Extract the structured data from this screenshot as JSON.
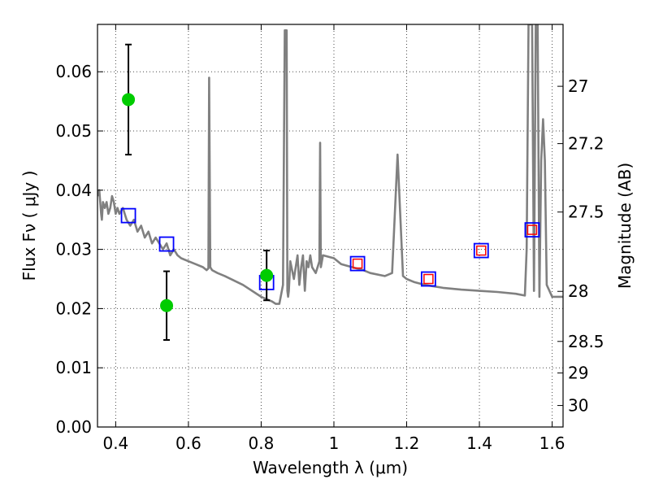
{
  "chart_data": {
    "type": "scatter",
    "xlabel": "Wavelength  λ (μm)",
    "ylabel": "Flux  Fν  ( μJy )",
    "y2label": "Magnitude (AB)",
    "xlim": [
      0.35,
      1.63
    ],
    "ylim": [
      0.0,
      0.068
    ],
    "xticks": [
      0.4,
      0.6,
      0.8,
      1.0,
      1.2,
      1.4,
      1.6
    ],
    "xtick_labels": [
      "0.4",
      "0.6",
      "0.8",
      "1",
      "1.2",
      "1.4",
      "1.6"
    ],
    "yticks": [
      0.0,
      0.01,
      0.02,
      0.03,
      0.04,
      0.05,
      0.06
    ],
    "ytick_labels": [
      "0.00",
      "0.01",
      "0.02",
      "0.03",
      "0.04",
      "0.05",
      "0.06"
    ],
    "mag_ticks": [
      "27",
      "27.2",
      "27.5",
      "28",
      "28.5",
      "29",
      "30"
    ],
    "grid": true,
    "series": [
      {
        "kind": "line",
        "color": "#808080",
        "x": [
          0.35,
          0.355,
          0.36,
          0.362,
          0.365,
          0.37,
          0.375,
          0.38,
          0.385,
          0.39,
          0.395,
          0.4,
          0.405,
          0.41,
          0.42,
          0.43,
          0.44,
          0.45,
          0.46,
          0.47,
          0.48,
          0.49,
          0.5,
          0.51,
          0.52,
          0.53,
          0.54,
          0.55,
          0.56,
          0.57,
          0.58,
          0.6,
          0.62,
          0.64,
          0.65,
          0.655,
          0.657,
          0.66,
          0.665,
          0.68,
          0.7,
          0.75,
          0.8,
          0.83,
          0.84,
          0.85,
          0.86,
          0.865,
          0.87,
          0.872,
          0.874,
          0.876,
          0.88,
          0.89,
          0.9,
          0.905,
          0.91,
          0.915,
          0.92,
          0.925,
          0.93,
          0.935,
          0.94,
          0.95,
          0.96,
          0.962,
          0.964,
          0.97,
          1.0,
          1.02,
          1.05,
          1.08,
          1.1,
          1.14,
          1.16,
          1.175,
          1.19,
          1.2,
          1.22,
          1.25,
          1.3,
          1.35,
          1.4,
          1.45,
          1.5,
          1.525,
          1.53,
          1.535,
          1.545,
          1.55,
          1.555,
          1.56,
          1.565,
          1.57,
          1.575,
          1.58,
          1.585,
          1.6,
          1.61,
          1.63
        ],
        "y": [
          0.039,
          0.04,
          0.036,
          0.035,
          0.038,
          0.037,
          0.038,
          0.036,
          0.037,
          0.039,
          0.038,
          0.036,
          0.037,
          0.036,
          0.037,
          0.035,
          0.034,
          0.035,
          0.033,
          0.034,
          0.032,
          0.033,
          0.031,
          0.032,
          0.031,
          0.03,
          0.031,
          0.029,
          0.03,
          0.029,
          0.0285,
          0.028,
          0.0275,
          0.027,
          0.0265,
          0.0268,
          0.059,
          0.027,
          0.0265,
          0.026,
          0.0255,
          0.024,
          0.022,
          0.0212,
          0.0208,
          0.0208,
          0.024,
          0.067,
          0.067,
          0.023,
          0.022,
          0.023,
          0.028,
          0.025,
          0.029,
          0.024,
          0.027,
          0.029,
          0.023,
          0.028,
          0.027,
          0.029,
          0.027,
          0.026,
          0.028,
          0.048,
          0.027,
          0.029,
          0.0285,
          0.0275,
          0.027,
          0.0265,
          0.026,
          0.0255,
          0.026,
          0.046,
          0.0255,
          0.025,
          0.0245,
          0.024,
          0.0235,
          0.0232,
          0.023,
          0.0228,
          0.0225,
          0.0222,
          0.03,
          0.068,
          0.068,
          0.023,
          0.068,
          0.068,
          0.022,
          0.045,
          0.052,
          0.045,
          0.024,
          0.022,
          0.022,
          0.022
        ]
      },
      {
        "kind": "open-square",
        "color": "#0000ff",
        "x": [
          0.435,
          0.54,
          0.815,
          1.065,
          1.26,
          1.405,
          1.545
        ],
        "y": [
          0.0357,
          0.0309,
          0.0244,
          0.0276,
          0.025,
          0.0298,
          0.0333
        ]
      },
      {
        "kind": "open-square-small",
        "color": "#ff0000",
        "x": [
          1.065,
          1.26,
          1.405,
          1.545
        ],
        "y": [
          0.0276,
          0.025,
          0.0298,
          0.0333
        ]
      },
      {
        "kind": "errorbar-point",
        "color": "#00cc00",
        "x": [
          0.435,
          0.54,
          0.815
        ],
        "y": [
          0.0553,
          0.0205,
          0.0256
        ],
        "yerr": [
          0.0093,
          0.0058,
          0.0042
        ]
      }
    ]
  }
}
